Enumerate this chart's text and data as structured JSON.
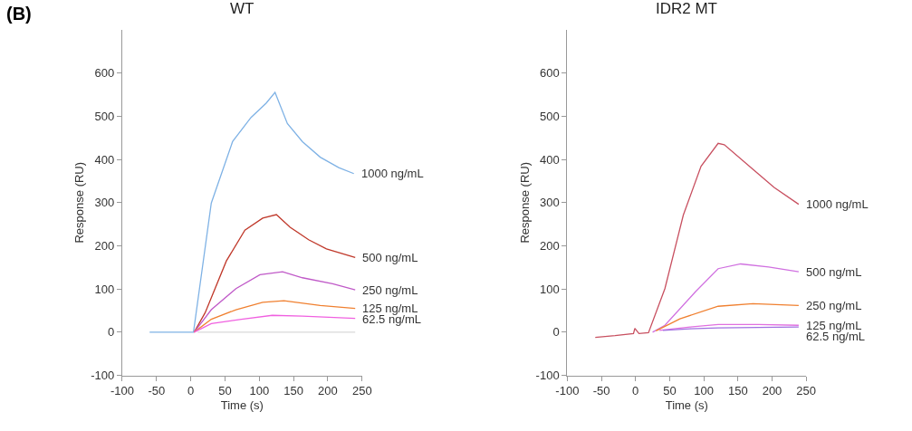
{
  "chart_data": [
    {
      "type": "line",
      "title": "WT",
      "xlabel": "Time (s)",
      "ylabel": "Response (RU)",
      "annotations": [
        "(B)"
      ],
      "xlim": [
        -100,
        250
      ],
      "xticks": [
        -100,
        -50,
        0,
        50,
        100,
        150,
        200,
        250
      ],
      "ylim": [
        -100,
        700
      ],
      "yticks": [
        -100,
        0,
        100,
        200,
        300,
        400,
        500,
        600
      ],
      "legend": false,
      "marker": "none",
      "line_style": "solid",
      "series": [
        {
          "name": "1000 ng/mL",
          "color": "#7fb2e5",
          "x": [
            -60,
            -30,
            0,
            4,
            30,
            61,
            88,
            110,
            123,
            141,
            163,
            189,
            216,
            238
          ],
          "values": [
            0,
            0,
            0,
            0,
            299,
            441,
            497,
            530,
            555,
            483,
            441,
            405,
            381,
            367
          ]
        },
        {
          "name": "500 ng/mL",
          "color": "#c0392b",
          "x": [
            5,
            21,
            52,
            79,
            105,
            125,
            145,
            172,
            198,
            240
          ],
          "values": [
            0,
            45,
            165,
            236,
            264,
            272,
            243,
            214,
            193,
            173
          ]
        },
        {
          "name": "250 ng/mL",
          "color": "#c05ac8",
          "x": [
            5,
            30,
            66,
            101,
            134,
            163,
            207,
            240
          ],
          "values": [
            0,
            52,
            101,
            133,
            140,
            126,
            112,
            98
          ]
        },
        {
          "name": "125 ng/mL",
          "color": "#f08030",
          "x": [
            5,
            30,
            66,
            105,
            136,
            189,
            240
          ],
          "values": [
            0,
            30,
            52,
            69,
            73,
            62,
            55
          ]
        },
        {
          "name": "62.5 ng/mL",
          "color": "#f060e0",
          "x": [
            5,
            30,
            74,
            119,
            163,
            240
          ],
          "values": [
            0,
            20,
            30,
            39,
            37,
            32
          ]
        },
        {
          "color": "#d9d9d9",
          "x": [
            10,
            240
          ],
          "values": [
            0,
            0
          ]
        }
      ]
    },
    {
      "type": "line",
      "title": "IDR2 MT",
      "xlabel": "Time (s)",
      "ylabel": "Response (RU)",
      "xlim": [
        -100,
        250
      ],
      "xticks": [
        -100,
        -50,
        0,
        50,
        100,
        150,
        200,
        250
      ],
      "ylim": [
        -100,
        700
      ],
      "yticks": [
        -100,
        0,
        100,
        200,
        300,
        400,
        500,
        600
      ],
      "legend": false,
      "marker": "none",
      "line_style": "solid",
      "series": [
        {
          "name": "1000 ng/mL",
          "color": "#c85060",
          "x": [
            -59,
            -30,
            -3,
            -1,
            5,
            19,
            43,
            70,
            96,
            121,
            130,
            172,
            203,
            239
          ],
          "values": [
            -12,
            -8,
            -3,
            9,
            -3,
            -1,
            101,
            271,
            384,
            437,
            434,
            377,
            335,
            296
          ]
        },
        {
          "name": "500 ng/mL",
          "color": "#d070e0",
          "x": [
            25,
            43,
            88,
            121,
            154,
            195,
            239
          ],
          "values": [
            0,
            16,
            94,
            147,
            158,
            151,
            140
          ]
        },
        {
          "name": "250 ng/mL",
          "color": "#f08030",
          "x": [
            30,
            65,
            121,
            172,
            239
          ],
          "values": [
            3,
            31,
            60,
            66,
            62
          ]
        },
        {
          "name": "125 ng/mL",
          "color": "#e070e0",
          "x": [
            35,
            80,
            121,
            180,
            239
          ],
          "values": [
            4,
            12,
            18,
            18,
            16
          ]
        },
        {
          "name": "62.5 ng/mL",
          "color": "#a070e0",
          "x": [
            40,
            80,
            121,
            180,
            239
          ],
          "values": [
            4,
            8,
            10,
            11,
            12
          ]
        }
      ]
    }
  ]
}
